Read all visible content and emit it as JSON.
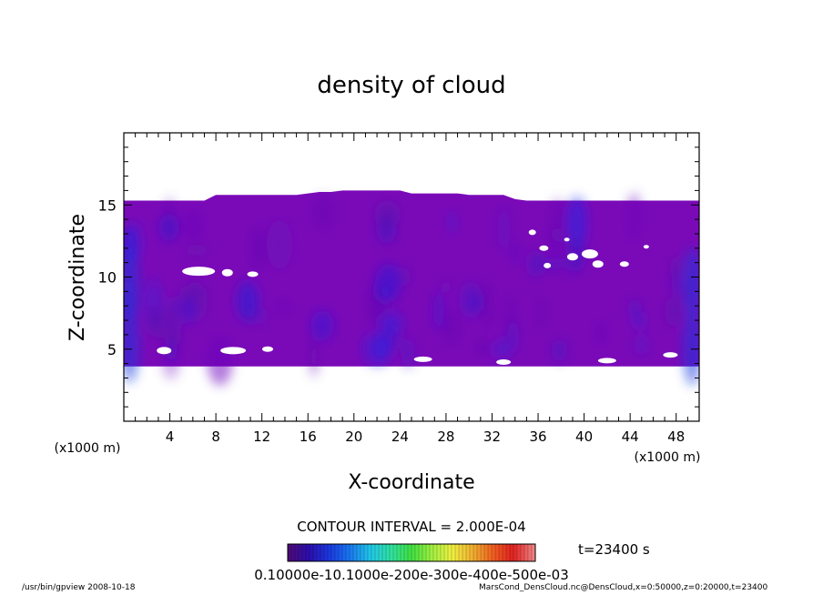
{
  "chart_data": {
    "type": "heatmap",
    "title": "density of cloud",
    "xlabel": "X-coordinate",
    "ylabel": "Z-coordinate",
    "x_unit": "(x1000 m)",
    "y_unit": "(x1000 m)",
    "xlim": [
      0,
      50
    ],
    "ylim": [
      0,
      20
    ],
    "x_ticks": [
      4,
      8,
      12,
      16,
      20,
      24,
      28,
      32,
      36,
      40,
      44,
      48
    ],
    "y_ticks": [
      5,
      10,
      15
    ],
    "contour_interval": "CONTOUR INTERVAL = 2.000E-04",
    "time_label": "t=23400 s",
    "colorbar_labels": "0.10000e-10.1000e-200e-300e-400e-500e-03",
    "colorbar_colors": [
      "#4b0a7a",
      "#2a0fb0",
      "#1a3ae0",
      "#1a7af0",
      "#20c8e8",
      "#30e0a0",
      "#40e040",
      "#a0f040",
      "#f0f040",
      "#f0b030",
      "#f06020",
      "#e02020",
      "#f08080"
    ],
    "cloud_base_z": 3.8,
    "cloud_top_z": [
      15.3,
      15.3,
      15.3,
      15.3,
      15.3,
      15.3,
      15.3,
      15.3,
      15.7,
      15.7,
      15.7,
      15.7,
      15.7,
      15.7,
      15.7,
      15.7,
      15.8,
      15.9,
      15.9,
      16.0,
      16.0,
      16.0,
      16.0,
      16.0,
      16.0,
      15.8,
      15.8,
      15.8,
      15.8,
      15.8,
      15.7,
      15.7,
      15.7,
      15.7,
      15.4,
      15.3,
      15.3,
      15.3,
      15.3,
      15.3,
      15.3,
      15.3,
      15.3,
      15.3,
      15.3,
      15.3,
      15.3,
      15.3,
      15.3,
      15.3,
      15.3
    ],
    "fill_color": "#7a0ab8"
  },
  "footer": {
    "left": "/usr/bin/gpview   2008-10-18",
    "right": "MarsCond_DensCloud.nc@DensCloud,x=0:50000,z=0:20000,t=23400"
  }
}
